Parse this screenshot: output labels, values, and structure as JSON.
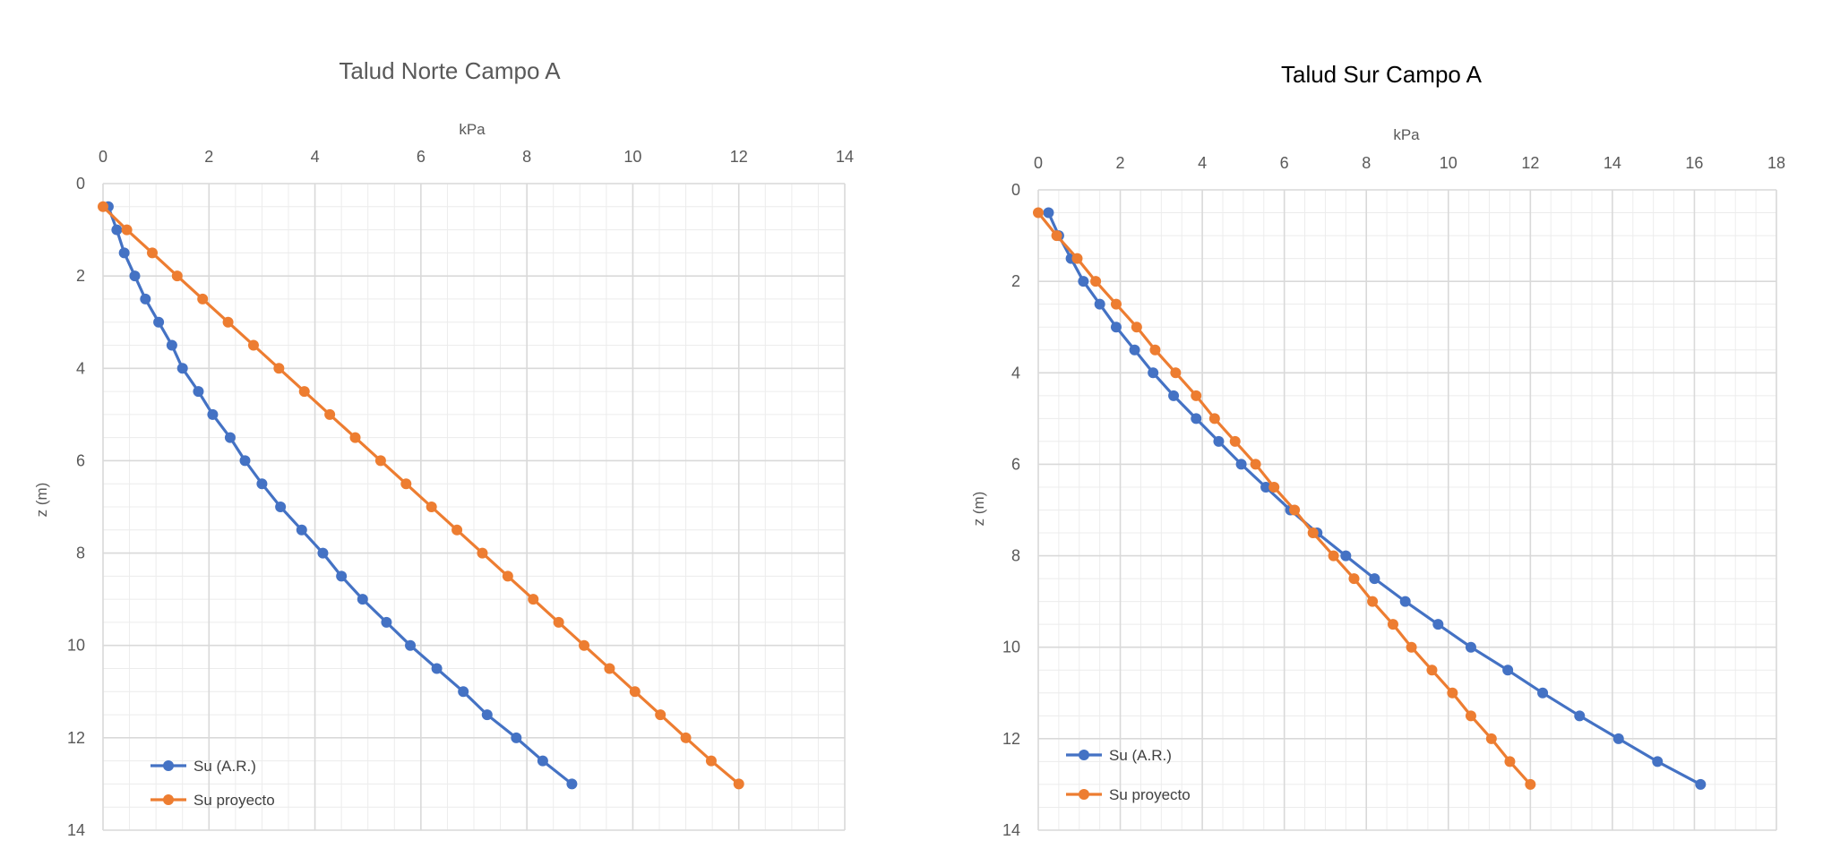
{
  "colors": {
    "series_ar": "#4472C4",
    "series_proyecto": "#ED7D31",
    "grid_major": "#d9d9d9",
    "grid_minor": "#ececec",
    "text": "#595959"
  },
  "chart_data": [
    {
      "type": "line",
      "title": "Talud Norte Campo A",
      "xlabel": "kPa",
      "ylabel": "z (m)",
      "xlim": [
        0,
        14
      ],
      "ylim": [
        0,
        14
      ],
      "x_ticks": [
        0,
        2,
        4,
        6,
        8,
        10,
        12,
        14
      ],
      "y_ticks": [
        0,
        2,
        4,
        6,
        8,
        10,
        12,
        14
      ],
      "x_axis_position": "top",
      "y_reversed": true,
      "grid": true,
      "legend_position": "bottom-left",
      "series": [
        {
          "name": "Su (A.R.)",
          "color": "#4472C4",
          "points": [
            [
              0.1,
              0.5
            ],
            [
              0.26,
              1.0
            ],
            [
              0.4,
              1.5
            ],
            [
              0.6,
              2.0
            ],
            [
              0.8,
              2.5
            ],
            [
              1.05,
              3.0
            ],
            [
              1.3,
              3.5
            ],
            [
              1.5,
              4.0
            ],
            [
              1.8,
              4.5
            ],
            [
              2.07,
              5.0
            ],
            [
              2.4,
              5.5
            ],
            [
              2.68,
              6.0
            ],
            [
              3.0,
              6.5
            ],
            [
              3.35,
              7.0
            ],
            [
              3.75,
              7.5
            ],
            [
              4.15,
              8.0
            ],
            [
              4.5,
              8.5
            ],
            [
              4.9,
              9.0
            ],
            [
              5.35,
              9.5
            ],
            [
              5.8,
              10.0
            ],
            [
              6.3,
              10.5
            ],
            [
              6.8,
              11.0
            ],
            [
              7.25,
              11.5
            ],
            [
              7.8,
              12.0
            ],
            [
              8.3,
              12.5
            ],
            [
              8.85,
              13.0
            ]
          ]
        },
        {
          "name": "Su proyecto",
          "color": "#ED7D31",
          "points": [
            [
              0.0,
              0.5
            ],
            [
              0.45,
              1.0
            ],
            [
              0.93,
              1.5
            ],
            [
              1.4,
              2.0
            ],
            [
              1.88,
              2.5
            ],
            [
              2.36,
              3.0
            ],
            [
              2.84,
              3.5
            ],
            [
              3.32,
              4.0
            ],
            [
              3.8,
              4.5
            ],
            [
              4.28,
              5.0
            ],
            [
              4.76,
              5.5
            ],
            [
              5.24,
              6.0
            ],
            [
              5.72,
              6.5
            ],
            [
              6.2,
              7.0
            ],
            [
              6.68,
              7.5
            ],
            [
              7.16,
              8.0
            ],
            [
              7.64,
              8.5
            ],
            [
              8.12,
              9.0
            ],
            [
              8.6,
              9.5
            ],
            [
              9.08,
              10.0
            ],
            [
              9.56,
              10.5
            ],
            [
              10.04,
              11.0
            ],
            [
              10.52,
              11.5
            ],
            [
              11.0,
              12.0
            ],
            [
              11.48,
              12.5
            ],
            [
              12.0,
              13.0
            ]
          ]
        }
      ]
    },
    {
      "type": "line",
      "title": "Talud Sur Campo A",
      "xlabel": "kPa",
      "ylabel": "z (m)",
      "xlim": [
        0,
        18
      ],
      "ylim": [
        0,
        14
      ],
      "x_ticks": [
        0,
        2,
        4,
        6,
        8,
        10,
        12,
        14,
        16,
        18
      ],
      "y_ticks": [
        0,
        2,
        4,
        6,
        8,
        10,
        12,
        14
      ],
      "x_axis_position": "top",
      "y_reversed": true,
      "grid": true,
      "legend_position": "bottom-left",
      "series": [
        {
          "name": "Su (A.R.)",
          "color": "#4472C4",
          "points": [
            [
              0.25,
              0.5
            ],
            [
              0.5,
              1.0
            ],
            [
              0.8,
              1.5
            ],
            [
              1.1,
              2.0
            ],
            [
              1.5,
              2.5
            ],
            [
              1.9,
              3.0
            ],
            [
              2.35,
              3.5
            ],
            [
              2.8,
              4.0
            ],
            [
              3.3,
              4.5
            ],
            [
              3.85,
              5.0
            ],
            [
              4.4,
              5.5
            ],
            [
              4.95,
              6.0
            ],
            [
              5.55,
              6.5
            ],
            [
              6.15,
              7.0
            ],
            [
              6.8,
              7.5
            ],
            [
              7.5,
              8.0
            ],
            [
              8.2,
              8.5
            ],
            [
              8.95,
              9.0
            ],
            [
              9.75,
              9.5
            ],
            [
              10.55,
              10.0
            ],
            [
              11.45,
              10.5
            ],
            [
              12.3,
              11.0
            ],
            [
              13.2,
              11.5
            ],
            [
              14.15,
              12.0
            ],
            [
              15.1,
              12.5
            ],
            [
              16.15,
              13.0
            ]
          ]
        },
        {
          "name": "Su proyecto",
          "color": "#ED7D31",
          "points": [
            [
              0.0,
              0.5
            ],
            [
              0.45,
              1.0
            ],
            [
              0.95,
              1.5
            ],
            [
              1.4,
              2.0
            ],
            [
              1.9,
              2.5
            ],
            [
              2.4,
              3.0
            ],
            [
              2.85,
              3.5
            ],
            [
              3.35,
              4.0
            ],
            [
              3.85,
              4.5
            ],
            [
              4.3,
              5.0
            ],
            [
              4.8,
              5.5
            ],
            [
              5.3,
              6.0
            ],
            [
              5.75,
              6.5
            ],
            [
              6.25,
              7.0
            ],
            [
              6.7,
              7.5
            ],
            [
              7.2,
              8.0
            ],
            [
              7.7,
              8.5
            ],
            [
              8.15,
              9.0
            ],
            [
              8.65,
              9.5
            ],
            [
              9.1,
              10.0
            ],
            [
              9.6,
              10.5
            ],
            [
              10.1,
              11.0
            ],
            [
              10.55,
              11.5
            ],
            [
              11.05,
              12.0
            ],
            [
              11.5,
              12.5
            ],
            [
              12.0,
              13.0
            ]
          ]
        }
      ]
    }
  ]
}
